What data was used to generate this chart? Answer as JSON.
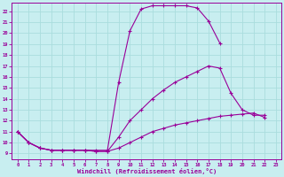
{
  "bg_color": "#c8eef0",
  "line_color": "#990099",
  "grid_color": "#aadddd",
  "xlabel": "Windchill (Refroidissement éolien,°C)",
  "ylabel_ticks": [
    9,
    10,
    11,
    12,
    13,
    14,
    15,
    16,
    17,
    18,
    19,
    20,
    21,
    22
  ],
  "xlabel_ticks": [
    0,
    1,
    2,
    3,
    4,
    5,
    6,
    7,
    8,
    9,
    10,
    11,
    12,
    13,
    14,
    15,
    16,
    17,
    18,
    19,
    20,
    21,
    22,
    23
  ],
  "xlim": [
    -0.5,
    23.5
  ],
  "ylim": [
    8.5,
    22.8
  ],
  "curves": [
    {
      "x": [
        0,
        1,
        2,
        3,
        4,
        5,
        6,
        7,
        8,
        9,
        10,
        11,
        12,
        13,
        14,
        15,
        16,
        17,
        18
      ],
      "y": [
        11,
        10,
        9.5,
        9.3,
        9.3,
        9.3,
        9.3,
        9.3,
        9.3,
        15.5,
        20.2,
        22.2,
        22.5,
        22.5,
        22.5,
        22.5,
        22.3,
        21.1,
        19.1
      ]
    },
    {
      "x": [
        0,
        1,
        2,
        3,
        4,
        5,
        6,
        7,
        8,
        9,
        10,
        11,
        12,
        13,
        14,
        15,
        16,
        17,
        18,
        19,
        20,
        21,
        22
      ],
      "y": [
        11,
        10,
        9.5,
        9.3,
        9.3,
        9.3,
        9.3,
        9.2,
        9.2,
        10.5,
        12.0,
        13.0,
        14.0,
        14.8,
        15.5,
        16.0,
        16.5,
        17.0,
        16.8,
        14.5,
        13.0,
        12.5,
        12.5
      ]
    },
    {
      "x": [
        0,
        1,
        2,
        3,
        4,
        5,
        6,
        7,
        8,
        9,
        10,
        11,
        12,
        13,
        14,
        15,
        16,
        17,
        18,
        19,
        20,
        21,
        22
      ],
      "y": [
        11,
        10,
        9.5,
        9.3,
        9.3,
        9.3,
        9.3,
        9.2,
        9.2,
        9.5,
        10.0,
        10.5,
        11.0,
        11.3,
        11.6,
        11.8,
        12.0,
        12.2,
        12.4,
        12.5,
        12.6,
        12.7,
        12.3
      ]
    }
  ]
}
